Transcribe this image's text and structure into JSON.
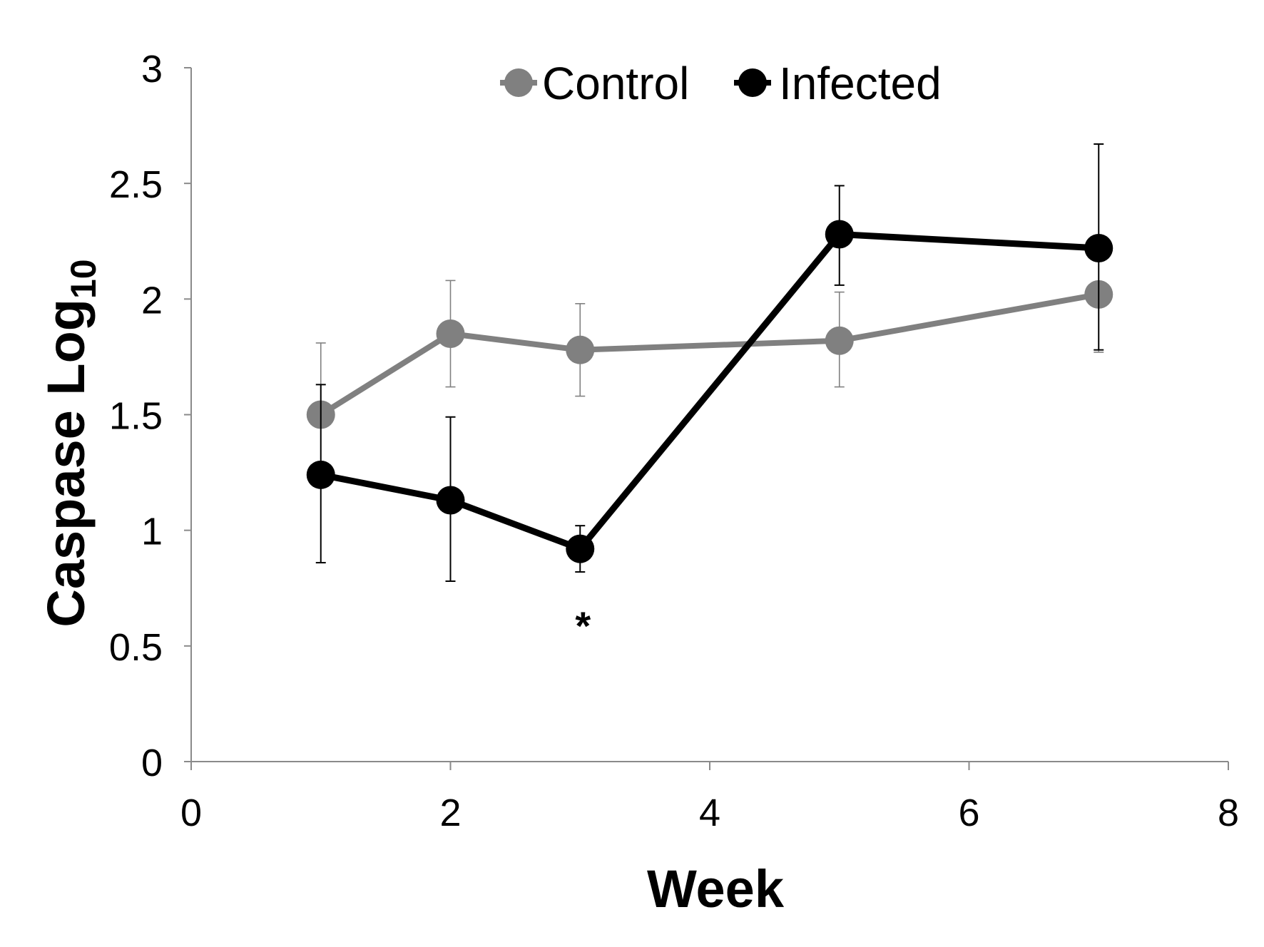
{
  "chart_data": {
    "type": "line",
    "title": "",
    "xlabel": "Week",
    "ylabel_main": "Caspase Log",
    "ylabel_sub": "10",
    "xlim": [
      0,
      8
    ],
    "ylim": [
      0,
      3
    ],
    "x_ticks": [
      0,
      2,
      4,
      6,
      8
    ],
    "x_tick_labels": [
      "0",
      "2",
      "4",
      "6",
      "8"
    ],
    "y_ticks": [
      0,
      0.5,
      1,
      1.5,
      2,
      2.5,
      3
    ],
    "y_tick_labels": [
      "0",
      "0.5",
      "1",
      "1.5",
      "2",
      "2.5",
      "3"
    ],
    "grid": false,
    "legend_position": "top-center",
    "series": [
      {
        "name": "Control",
        "color": "#808080",
        "x": [
          1,
          2,
          3,
          5,
          7
        ],
        "values": [
          1.5,
          1.85,
          1.78,
          1.82,
          2.02
        ],
        "err_upper": [
          0.31,
          0.23,
          0.2,
          0.21,
          0.25
        ],
        "err_lower": [
          0.0,
          0.23,
          0.2,
          0.2,
          0.25
        ]
      },
      {
        "name": "Infected",
        "color": "#000000",
        "x": [
          1,
          2,
          3,
          5,
          7
        ],
        "values": [
          1.24,
          1.13,
          0.92,
          2.28,
          2.22
        ],
        "err_upper": [
          0.39,
          0.36,
          0.1,
          0.21,
          0.45
        ],
        "err_lower": [
          0.38,
          0.35,
          0.1,
          0.22,
          0.44
        ]
      }
    ],
    "annotations": [
      {
        "text": "*",
        "x": 3,
        "y": 0.62
      }
    ]
  }
}
